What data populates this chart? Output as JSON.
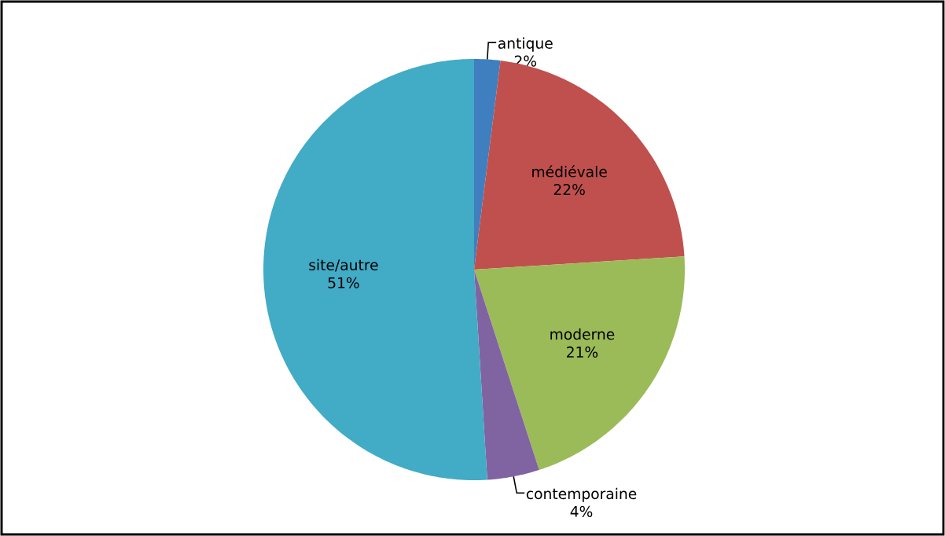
{
  "chart_data": {
    "type": "pie",
    "categories": [
      "antique",
      "médiévale",
      "moderne",
      "contemporaine",
      "site/autre"
    ],
    "values": [
      2,
      22,
      21,
      4,
      51
    ],
    "value_labels": [
      "2%",
      "22%",
      "21%",
      "4%",
      "51%"
    ],
    "colors": [
      "#3f7fbf",
      "#c0504d",
      "#9bbb59",
      "#8064a2",
      "#42abc6"
    ]
  }
}
